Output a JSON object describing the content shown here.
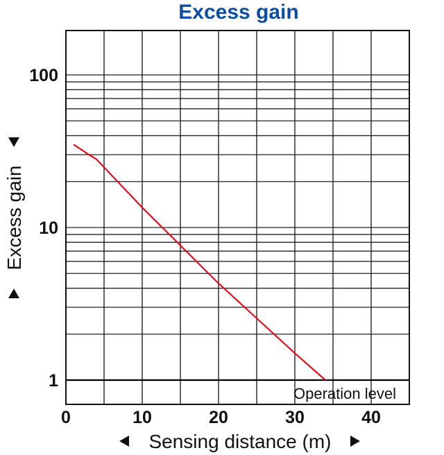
{
  "chart_data": {
    "type": "line",
    "title": "Excess gain",
    "xlabel": "Sensing distance (m)",
    "ylabel": "Excess gain",
    "xlim": [
      0,
      45
    ],
    "ylim": [
      0.75,
      200
    ],
    "y_scale": "log",
    "grid": true,
    "x_ticks": [
      0,
      10,
      20,
      30,
      40
    ],
    "x_tick_labels": [
      "0",
      "10",
      "20",
      "30",
      "40"
    ],
    "y_ticks": [
      1,
      10,
      100
    ],
    "y_tick_labels": [
      "1",
      "10",
      "100"
    ],
    "series": [
      {
        "color": "#e10f1e",
        "x": [
          1,
          3,
          4,
          10,
          20,
          30,
          34
        ],
        "y": [
          35,
          30,
          28,
          13.5,
          4.3,
          1.5,
          1.0
        ]
      }
    ],
    "annotations": [
      {
        "text": "Operation level"
      }
    ]
  }
}
